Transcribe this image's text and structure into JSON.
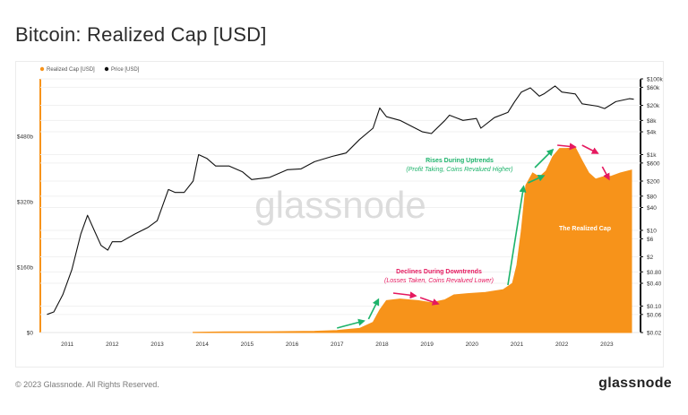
{
  "title": "Bitcoin: Realized Cap [USD]",
  "footer": {
    "copyright": "© 2023 Glassnode. All Rights Reserved.",
    "logo": "glassnode"
  },
  "watermark": "glassnode",
  "colors": {
    "realized_cap": "#F7931A",
    "price": "#111111",
    "green_arrow": "#1DB36B",
    "red_arrow": "#E5195F"
  },
  "chart_data": {
    "type": "area",
    "legend": [
      {
        "name": "Realized Cap [USD]",
        "color": "#F7931A"
      },
      {
        "name": "Price [USD]",
        "color": "#111111"
      }
    ],
    "x_ticks": [
      "2011",
      "2012",
      "2013",
      "2014",
      "2015",
      "2016",
      "2017",
      "2018",
      "2019",
      "2020",
      "2021",
      "2022",
      "2023"
    ],
    "y_left_ticks": [
      "$0",
      "$160b",
      "$320b",
      "$480b"
    ],
    "y_left_values": [
      0,
      160,
      320,
      480
    ],
    "y_left_unit": "billions USD",
    "y_right_ticks": [
      "$0.02",
      "$0.06",
      "$0.10",
      "$0.40",
      "$0.80",
      "$2",
      "$6",
      "$10",
      "$40",
      "$80",
      "$200",
      "$600",
      "$1k",
      "$4k",
      "$8k",
      "$20k",
      "$60k",
      "$100k"
    ],
    "y_right_values": [
      0.02,
      0.06,
      0.1,
      0.4,
      0.8,
      2,
      6,
      10,
      40,
      80,
      200,
      600,
      1000,
      4000,
      8000,
      20000,
      60000,
      100000
    ],
    "y_right_scale": "log",
    "series": [
      {
        "name": "Realized Cap [USD]",
        "axis": "left",
        "points": [
          [
            2013.8,
            0.5
          ],
          [
            2014.5,
            1.5
          ],
          [
            2015.5,
            2
          ],
          [
            2016.5,
            3
          ],
          [
            2017.0,
            5
          ],
          [
            2017.5,
            10
          ],
          [
            2017.8,
            25
          ],
          [
            2017.95,
            55
          ],
          [
            2018.1,
            78
          ],
          [
            2018.4,
            82
          ],
          [
            2018.8,
            78
          ],
          [
            2019.1,
            73
          ],
          [
            2019.4,
            80
          ],
          [
            2019.6,
            92
          ],
          [
            2019.9,
            95
          ],
          [
            2020.3,
            98
          ],
          [
            2020.7,
            105
          ],
          [
            2020.9,
            120
          ],
          [
            2021.0,
            165
          ],
          [
            2021.1,
            250
          ],
          [
            2021.2,
            360
          ],
          [
            2021.35,
            390
          ],
          [
            2021.5,
            380
          ],
          [
            2021.65,
            395
          ],
          [
            2021.8,
            430
          ],
          [
            2021.95,
            450
          ],
          [
            2022.1,
            450
          ],
          [
            2022.3,
            452
          ],
          [
            2022.45,
            420
          ],
          [
            2022.6,
            390
          ],
          [
            2022.75,
            375
          ],
          [
            2022.9,
            380
          ],
          [
            2023.1,
            382
          ],
          [
            2023.3,
            390
          ],
          [
            2023.55,
            397
          ]
        ]
      },
      {
        "name": "Price [USD]",
        "axis": "right",
        "points": [
          [
            2010.55,
            0.06
          ],
          [
            2010.7,
            0.07
          ],
          [
            2010.9,
            0.2
          ],
          [
            2011.1,
            0.9
          ],
          [
            2011.3,
            8
          ],
          [
            2011.45,
            25
          ],
          [
            2011.6,
            10
          ],
          [
            2011.75,
            4
          ],
          [
            2011.9,
            3
          ],
          [
            2012.0,
            5
          ],
          [
            2012.2,
            5
          ],
          [
            2012.5,
            8
          ],
          [
            2012.8,
            12
          ],
          [
            2013.0,
            18
          ],
          [
            2013.25,
            120
          ],
          [
            2013.4,
            100
          ],
          [
            2013.6,
            100
          ],
          [
            2013.8,
            200
          ],
          [
            2013.92,
            1000
          ],
          [
            2014.1,
            800
          ],
          [
            2014.3,
            500
          ],
          [
            2014.6,
            500
          ],
          [
            2014.9,
            350
          ],
          [
            2015.1,
            220
          ],
          [
            2015.5,
            250
          ],
          [
            2015.9,
            400
          ],
          [
            2016.2,
            420
          ],
          [
            2016.5,
            650
          ],
          [
            2016.9,
            900
          ],
          [
            2017.2,
            1100
          ],
          [
            2017.5,
            2500
          ],
          [
            2017.8,
            5000
          ],
          [
            2017.95,
            17000
          ],
          [
            2018.1,
            10000
          ],
          [
            2018.4,
            8000
          ],
          [
            2018.9,
            4000
          ],
          [
            2019.1,
            3600
          ],
          [
            2019.4,
            8000
          ],
          [
            2019.5,
            11000
          ],
          [
            2019.8,
            8000
          ],
          [
            2020.1,
            9000
          ],
          [
            2020.2,
            5000
          ],
          [
            2020.5,
            9500
          ],
          [
            2020.8,
            13000
          ],
          [
            2020.95,
            25000
          ],
          [
            2021.1,
            45000
          ],
          [
            2021.3,
            58000
          ],
          [
            2021.5,
            35000
          ],
          [
            2021.6,
            40000
          ],
          [
            2021.85,
            65000
          ],
          [
            2022.0,
            45000
          ],
          [
            2022.3,
            40000
          ],
          [
            2022.45,
            22000
          ],
          [
            2022.8,
            19000
          ],
          [
            2022.95,
            16500
          ],
          [
            2023.2,
            25000
          ],
          [
            2023.5,
            30000
          ],
          [
            2023.6,
            29000
          ]
        ]
      }
    ],
    "annotations": [
      {
        "title": "Rises During Uptrends",
        "subtitle": "(Profit Taking, Coins Revalued Higher)",
        "color": "#1DB36B"
      },
      {
        "title": "Declines During Downtrends",
        "subtitle": "(Losses Taken, Coins Revalued Lower)",
        "color": "#E5195F"
      },
      {
        "label": "The Realized Cap",
        "color": "#F7931A"
      }
    ]
  }
}
